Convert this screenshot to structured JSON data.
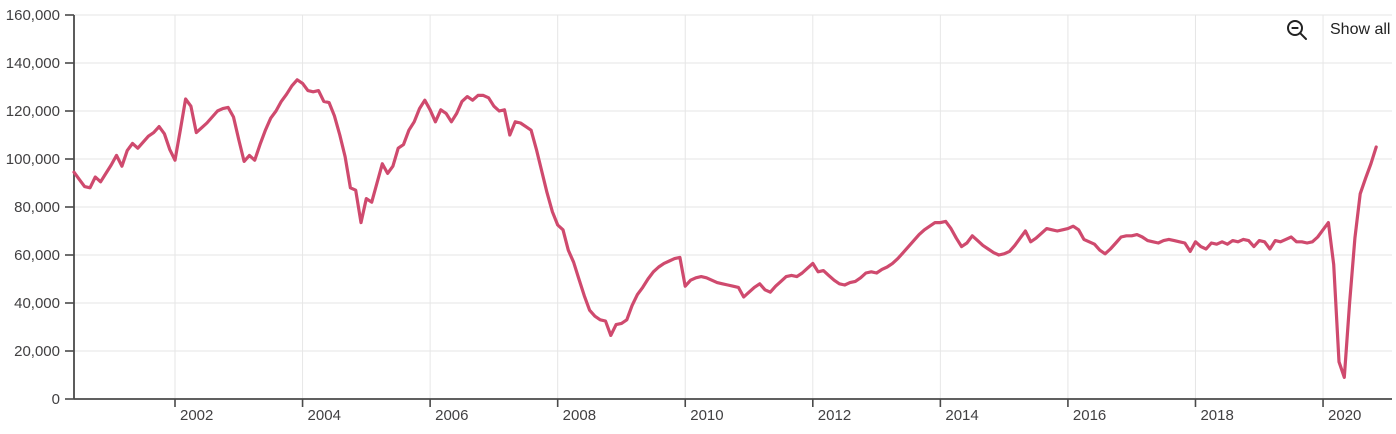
{
  "toolbar": {
    "show_all_label": "Show all",
    "zoom_out_icon": "magnifier-minus",
    "icon_color": "#222222"
  },
  "chart_data": {
    "type": "line",
    "title": "",
    "frequency": "monthly",
    "start_year": 2000,
    "start_month": 6,
    "line_color": "#cf4a6e",
    "grid": true,
    "grid_color": "#e6e6e6",
    "axis_color": "#4a4a4a",
    "label_color": "#414042",
    "ylim": [
      0,
      160000
    ],
    "legend": "none",
    "y_ticks": [
      {
        "value": 0,
        "label": "0"
      },
      {
        "value": 20000,
        "label": "20,000"
      },
      {
        "value": 40000,
        "label": "40,000"
      },
      {
        "value": 60000,
        "label": "60,000"
      },
      {
        "value": 80000,
        "label": "80,000"
      },
      {
        "value": 100000,
        "label": "100,000"
      },
      {
        "value": 120000,
        "label": "120,000"
      },
      {
        "value": 140000,
        "label": "140,000"
      },
      {
        "value": 160000,
        "label": "160,000"
      }
    ],
    "x_ticks": [
      {
        "year": 2002,
        "label": "2002"
      },
      {
        "year": 2004,
        "label": "2004"
      },
      {
        "year": 2006,
        "label": "2006"
      },
      {
        "year": 2008,
        "label": "2008"
      },
      {
        "year": 2010,
        "label": "2010"
      },
      {
        "year": 2012,
        "label": "2012"
      },
      {
        "year": 2014,
        "label": "2014"
      },
      {
        "year": 2016,
        "label": "2016"
      },
      {
        "year": 2018,
        "label": "2018"
      },
      {
        "year": 2020,
        "label": "2020"
      }
    ],
    "values": [
      94500,
      91500,
      88500,
      88000,
      92500,
      90500,
      94000,
      97500,
      101500,
      97000,
      103500,
      106500,
      104500,
      107000,
      109500,
      111000,
      113500,
      110500,
      104000,
      99500,
      112000,
      125000,
      122000,
      111000,
      113000,
      115000,
      117500,
      120000,
      121000,
      121500,
      117500,
      108000,
      99000,
      101500,
      99500,
      106000,
      112000,
      117000,
      120000,
      124000,
      127000,
      130500,
      133000,
      131500,
      128500,
      128000,
      128500,
      124000,
      123500,
      118000,
      110000,
      101000,
      88000,
      87000,
      73500,
      83500,
      82000,
      90000,
      98000,
      94000,
      97000,
      104500,
      106000,
      112000,
      115500,
      121000,
      124500,
      120500,
      115500,
      120500,
      119000,
      115500,
      119000,
      124000,
      126000,
      124500,
      126500,
      126500,
      125500,
      122000,
      120000,
      120500,
      110000,
      115500,
      115000,
      113500,
      112000,
      104000,
      95000,
      86000,
      78000,
      72500,
      70500,
      62000,
      57000,
      50000,
      43000,
      37000,
      34500,
      33000,
      32500,
      26500,
      31000,
      31500,
      33000,
      39000,
      43500,
      46500,
      50000,
      53000,
      55000,
      56500,
      57500,
      58500,
      59000,
      47000,
      49500,
      50500,
      51000,
      50500,
      49500,
      48500,
      48000,
      47500,
      47000,
      46500,
      42500,
      44500,
      46500,
      48000,
      45500,
      44500,
      47000,
      49000,
      51000,
      51500,
      51000,
      52500,
      54500,
      56500,
      53000,
      53500,
      51500,
      49500,
      48000,
      47500,
      48500,
      49000,
      50500,
      52500,
      53000,
      52500,
      54000,
      55000,
      56500,
      58500,
      61000,
      63500,
      66000,
      68500,
      70500,
      72000,
      73500,
      73500,
      74000,
      71000,
      67000,
      63500,
      65000,
      68000,
      66000,
      64000,
      62500,
      61000,
      60000,
      60500,
      61500,
      64000,
      67000,
      70000,
      65500,
      67000,
      69000,
      71000,
      70500,
      70000,
      70500,
      71000,
      72000,
      70500,
      66500,
      65500,
      64500,
      62000,
      60500,
      62500,
      65000,
      67500,
      68000,
      68000,
      68500,
      67500,
      66000,
      65500,
      65000,
      66000,
      66500,
      66000,
      65500,
      65000,
      61500,
      65500,
      63500,
      62500,
      65000,
      64500,
      65500,
      64500,
      66000,
      65500,
      66500,
      66000,
      63500,
      66000,
      65500,
      62500,
      66000,
      65500,
      66500,
      67500,
      65500,
      65500,
      65000,
      65500,
      67500,
      70500,
      73500,
      56000,
      15500,
      9000,
      40000,
      67000,
      85500,
      92000,
      98000,
      105000
    ]
  }
}
